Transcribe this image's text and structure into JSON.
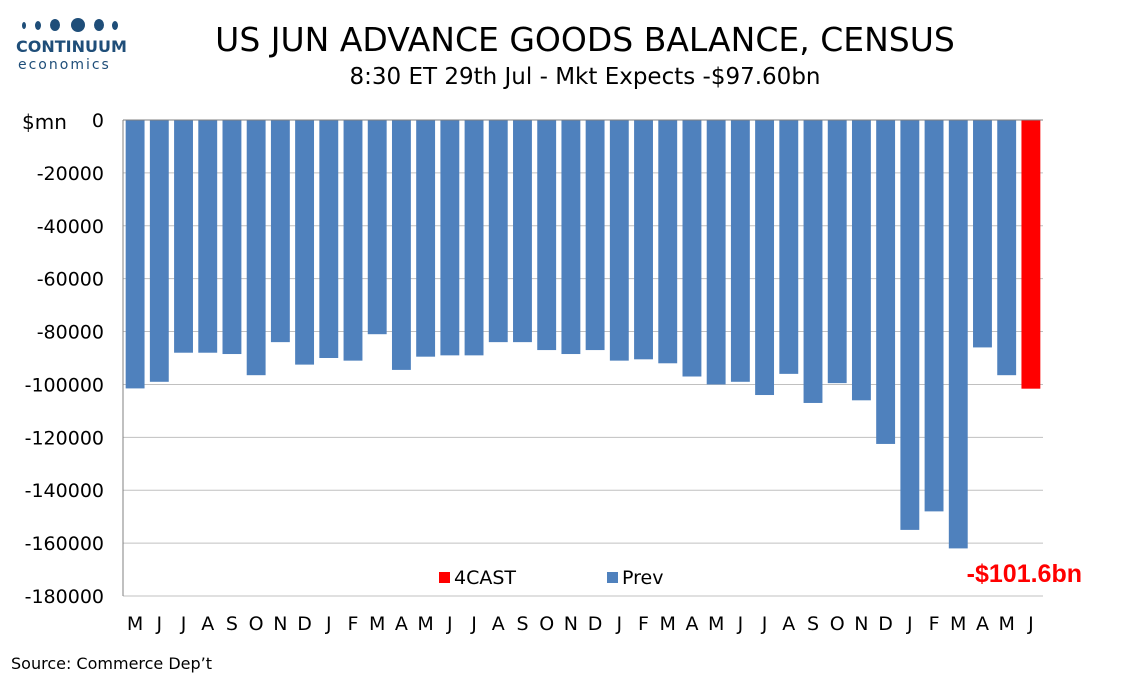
{
  "logo": {
    "word1": "CONTINUUM",
    "word2": "economics",
    "color": "#1f4e79"
  },
  "title": "US JUN ADVANCE GOODS BALANCE, CENSUS",
  "subtitle": "8:30 ET 29th Jul - Mkt Expects -$97.60bn",
  "source": "Source: Commerce Dep’t",
  "colors": {
    "prev": "#4f81bd",
    "forecast": "#ff0000",
    "grid": "#c0c0c0",
    "axis": "#808080"
  },
  "chart_data": {
    "type": "bar",
    "ylabel": "$mn",
    "ylim": [
      -180000,
      0
    ],
    "yticks": [
      0,
      -20000,
      -40000,
      -60000,
      -80000,
      -100000,
      -120000,
      -140000,
      -160000,
      -180000
    ],
    "grid": true,
    "legend_position": "bottom-center",
    "categories": [
      "M",
      "J",
      "J",
      "A",
      "S",
      "O",
      "N",
      "D",
      "J",
      "F",
      "M",
      "A",
      "M",
      "J",
      "J",
      "A",
      "S",
      "O",
      "N",
      "D",
      "J",
      "F",
      "M",
      "A",
      "M",
      "J",
      "J",
      "A",
      "S",
      "O",
      "N",
      "D",
      "J",
      "F",
      "M",
      "A",
      "M",
      "J"
    ],
    "series": [
      {
        "name": "Prev",
        "color": "#4f81bd",
        "values": [
          -101500,
          -99000,
          -88000,
          -88000,
          -88500,
          -96500,
          -84000,
          -92500,
          -90000,
          -91000,
          -81000,
          -94500,
          -89500,
          -89000,
          -89000,
          -84000,
          -84000,
          -87000,
          -88500,
          -87000,
          -91000,
          -90500,
          -92000,
          -97000,
          -100000,
          -99000,
          -104000,
          -96000,
          -107000,
          -99500,
          -106000,
          -122500,
          -155000,
          -148000,
          -162000,
          -86000,
          -96500,
          null
        ]
      },
      {
        "name": "4CAST",
        "color": "#ff0000",
        "values": [
          null,
          null,
          null,
          null,
          null,
          null,
          null,
          null,
          null,
          null,
          null,
          null,
          null,
          null,
          null,
          null,
          null,
          null,
          null,
          null,
          null,
          null,
          null,
          null,
          null,
          null,
          null,
          null,
          null,
          null,
          null,
          null,
          null,
          null,
          null,
          null,
          null,
          -101600
        ]
      }
    ],
    "annotation": "-$101.6bn"
  }
}
